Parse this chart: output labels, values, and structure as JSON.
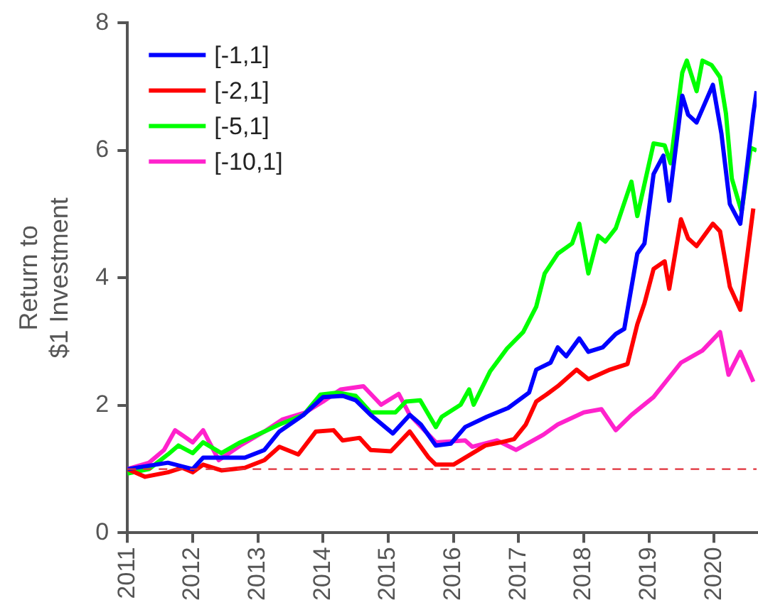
{
  "chart_data": {
    "type": "line",
    "ylabel": "Return to\n$1 Investment",
    "xlim": [
      2011,
      2020.65
    ],
    "xticks": [
      2011,
      2012,
      2013,
      2014,
      2015,
      2016,
      2017,
      2018,
      2019,
      2020
    ],
    "ylim": [
      0,
      8
    ],
    "yticks": [
      0,
      2,
      4,
      6,
      8
    ],
    "grid": false,
    "legend": "top left",
    "line_style": "solid",
    "marker": "none",
    "ref_lines": [
      {
        "axis": "y",
        "value": 1,
        "color": "#e0303a",
        "line_style": "dashed"
      }
    ],
    "series": [
      {
        "name": "[-1,1]",
        "color": "#0000ff",
        "x": [
          2011,
          2011.62,
          2012.0,
          2012.16,
          2012.8,
          2013.1,
          2013.33,
          2013.7,
          2014.0,
          2014.3,
          2014.5,
          2014.73,
          2015.07,
          2015.33,
          2015.5,
          2015.73,
          2015.96,
          2016.18,
          2016.51,
          2016.84,
          2017.16,
          2017.27,
          2017.49,
          2017.6,
          2017.73,
          2017.93,
          2018.07,
          2018.29,
          2018.49,
          2018.62,
          2018.82,
          2018.93,
          2019.07,
          2019.22,
          2019.31,
          2019.51,
          2019.6,
          2019.73,
          2019.98,
          2020.11,
          2020.24,
          2020.4,
          2020.6,
          2020.65
        ],
        "values": [
          1.0,
          1.1,
          1.0,
          1.18,
          1.18,
          1.3,
          1.59,
          1.85,
          2.13,
          2.15,
          2.08,
          1.85,
          1.56,
          1.85,
          1.7,
          1.37,
          1.4,
          1.66,
          1.82,
          1.96,
          2.2,
          2.56,
          2.67,
          2.91,
          2.77,
          3.05,
          2.84,
          2.91,
          3.12,
          3.2,
          4.38,
          4.54,
          5.63,
          5.92,
          5.21,
          6.86,
          6.56,
          6.44,
          7.03,
          6.27,
          5.16,
          4.85,
          6.58,
          6.93
        ]
      },
      {
        "name": "[-2,1]",
        "color": "#ff0000",
        "x": [
          2011,
          2011.27,
          2011.62,
          2011.84,
          2012.0,
          2012.16,
          2012.44,
          2012.8,
          2013.1,
          2013.33,
          2013.62,
          2013.89,
          2014.16,
          2014.3,
          2014.56,
          2014.73,
          2015.04,
          2015.33,
          2015.62,
          2015.73,
          2016.0,
          2016.49,
          2016.73,
          2016.93,
          2017.11,
          2017.27,
          2017.44,
          2017.6,
          2017.89,
          2018.07,
          2018.4,
          2018.67,
          2018.82,
          2018.93,
          2019.07,
          2019.24,
          2019.31,
          2019.49,
          2019.6,
          2019.73,
          2019.98,
          2020.09,
          2020.24,
          2020.4,
          2020.6
        ],
        "values": [
          1.0,
          0.88,
          0.95,
          1.02,
          0.95,
          1.07,
          0.98,
          1.02,
          1.14,
          1.35,
          1.23,
          1.59,
          1.61,
          1.45,
          1.49,
          1.3,
          1.28,
          1.59,
          1.18,
          1.07,
          1.07,
          1.37,
          1.42,
          1.47,
          1.7,
          2.06,
          2.18,
          2.3,
          2.56,
          2.41,
          2.56,
          2.65,
          3.27,
          3.6,
          4.14,
          4.26,
          3.83,
          4.92,
          4.62,
          4.5,
          4.85,
          4.73,
          3.86,
          3.5,
          5.09
        ]
      },
      {
        "name": "[-5,1]",
        "color": "#00ff00",
        "x": [
          2011,
          2011.33,
          2011.62,
          2011.78,
          2012.0,
          2012.16,
          2012.44,
          2012.73,
          2013.1,
          2013.33,
          2013.7,
          2013.96,
          2014.22,
          2014.5,
          2014.73,
          2015.11,
          2015.27,
          2015.49,
          2015.73,
          2015.82,
          2016.11,
          2016.24,
          2016.31,
          2016.56,
          2016.82,
          2017.07,
          2017.27,
          2017.4,
          2017.6,
          2017.82,
          2017.93,
          2018.07,
          2018.22,
          2018.33,
          2018.49,
          2018.73,
          2018.82,
          2019.07,
          2019.24,
          2019.33,
          2019.51,
          2019.58,
          2019.73,
          2019.82,
          2019.96,
          2020.09,
          2020.18,
          2020.27,
          2020.42,
          2020.56,
          2020.65
        ],
        "values": [
          0.93,
          1.0,
          1.23,
          1.37,
          1.25,
          1.42,
          1.25,
          1.42,
          1.59,
          1.7,
          1.85,
          2.17,
          2.2,
          2.15,
          1.89,
          1.89,
          2.06,
          2.08,
          1.66,
          1.82,
          2.01,
          2.25,
          2.01,
          2.53,
          2.89,
          3.15,
          3.55,
          4.07,
          4.38,
          4.54,
          4.85,
          4.07,
          4.66,
          4.57,
          4.78,
          5.51,
          4.97,
          6.11,
          6.08,
          5.8,
          7.22,
          7.41,
          6.93,
          7.41,
          7.34,
          7.15,
          6.58,
          5.56,
          5.04,
          6.04,
          6.0
        ]
      },
      {
        "name": "[-10,1]",
        "color": "#ff22cc",
        "x": [
          2011,
          2011.33,
          2011.56,
          2011.73,
          2012.0,
          2012.16,
          2012.4,
          2012.73,
          2013.1,
          2013.38,
          2013.73,
          2014.0,
          2014.27,
          2014.62,
          2014.89,
          2015.16,
          2015.33,
          2015.73,
          2016.18,
          2016.29,
          2016.67,
          2016.96,
          2017.38,
          2017.6,
          2018.0,
          2018.27,
          2018.49,
          2018.73,
          2019.07,
          2019.49,
          2019.82,
          2020.09,
          2020.22,
          2020.4,
          2020.6
        ],
        "values": [
          1.0,
          1.1,
          1.3,
          1.61,
          1.42,
          1.61,
          1.14,
          1.37,
          1.59,
          1.78,
          1.89,
          2.06,
          2.25,
          2.3,
          2.01,
          2.18,
          1.85,
          1.42,
          1.45,
          1.35,
          1.45,
          1.3,
          1.54,
          1.7,
          1.89,
          1.94,
          1.61,
          1.85,
          2.13,
          2.67,
          2.86,
          3.15,
          2.48,
          2.84,
          2.37
        ]
      }
    ]
  }
}
